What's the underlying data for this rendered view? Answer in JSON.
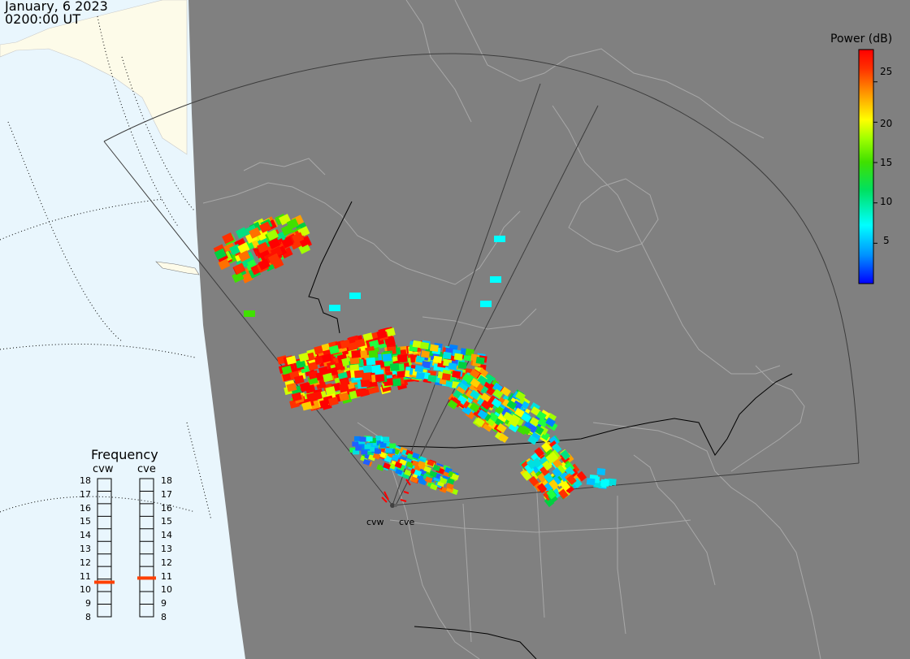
{
  "header": {
    "date": "January, 6 2023",
    "time": "0200:00 UT"
  },
  "colorbar": {
    "title": "Power (dB)",
    "ticks": [
      "25",
      "20",
      "15",
      "10",
      "5"
    ],
    "tick_values": [
      25,
      20,
      15,
      10,
      5
    ],
    "range": [
      0,
      29
    ],
    "colors": [
      "#0000ff",
      "#00a0ff",
      "#00ffff",
      "#00ff80",
      "#00d000",
      "#80ff00",
      "#ffff00",
      "#ffa000",
      "#ff4000",
      "#ff0000"
    ]
  },
  "frequency_panel": {
    "title": "Frequency",
    "radars": [
      {
        "name": "cvw",
        "frequency_mhz": 10.5
      },
      {
        "name": "cve",
        "frequency_mhz": 10.8
      }
    ],
    "scale": [
      "18",
      "17",
      "16",
      "15",
      "14",
      "13",
      "12",
      "11",
      "10",
      "9",
      "8"
    ],
    "marker_color": "#ff4000"
  },
  "sites": [
    {
      "name": "cvw"
    },
    {
      "name": "cve"
    }
  ],
  "colors": {
    "land": "#808080",
    "ocean": "#e9f6fd",
    "lit_land": "#fdfbe9",
    "boundary": "#a8a8a8",
    "fov": "#3a3a3a"
  }
}
